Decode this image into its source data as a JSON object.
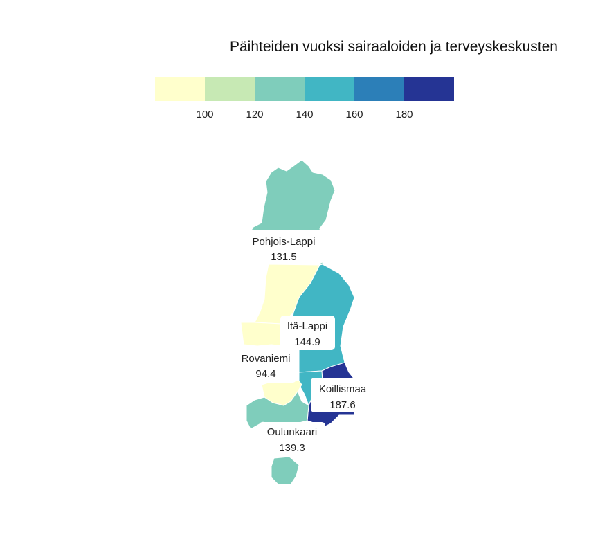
{
  "title": "Päihteiden vuoksi sairaaloiden ja terveyskeskusten",
  "legend": {
    "breaks": [
      "100",
      "120",
      "140",
      "160",
      "180"
    ],
    "colors": [
      "#ffffcc",
      "#c7e9b4",
      "#7fcdbb",
      "#41b6c4",
      "#2c7fb8",
      "#253494"
    ]
  },
  "regions": [
    {
      "name": "Pohjois-Lappi",
      "value": "131.5",
      "color": "#7fcdbb"
    },
    {
      "name": "Itä-Lappi",
      "value": "144.9",
      "color": "#41b6c4"
    },
    {
      "name": "Rovaniemi",
      "value": "94.4",
      "color": "#ffffcc"
    },
    {
      "name": "Koillismaa",
      "value": "187.6",
      "color": "#253494"
    },
    {
      "name": "Oulunkaari",
      "value": "139.3",
      "color": "#7fcdbb"
    }
  ]
}
